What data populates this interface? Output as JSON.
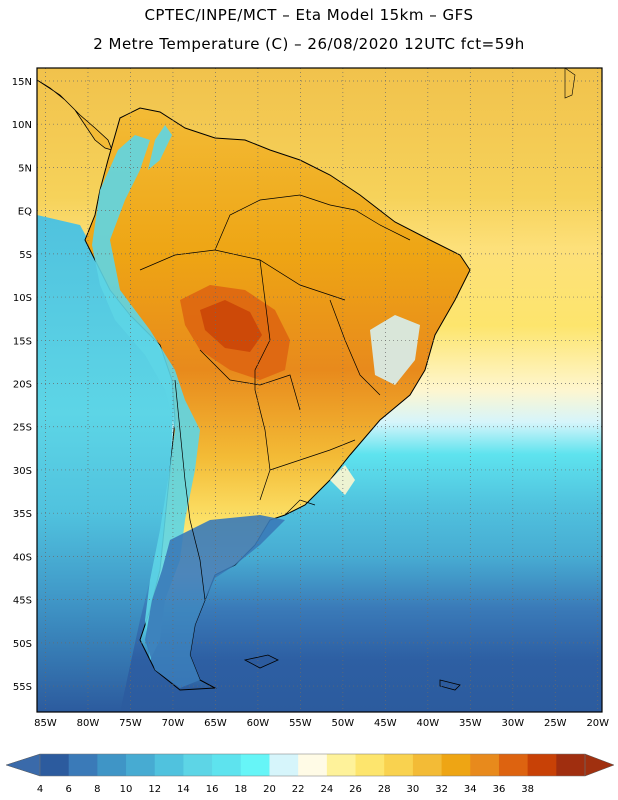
{
  "header": {
    "title_line1": "CPTEC/INPE/MCT  –   Eta Model 15km  –  GFS",
    "title_line2": "2 Metre Temperature (C)  –  26/08/2020 12UTC fct=59h"
  },
  "map": {
    "lat_labels": [
      "15N",
      "10N",
      "5N",
      "EQ",
      "5S",
      "10S",
      "15S",
      "20S",
      "25S",
      "30S",
      "35S",
      "40S",
      "45S",
      "50S",
      "55S"
    ],
    "lon_labels": [
      "85W",
      "80W",
      "75W",
      "70W",
      "65W",
      "60W",
      "55W",
      "50W",
      "45W",
      "40W",
      "35W",
      "30W",
      "25W",
      "20W"
    ],
    "lat_range": [
      -58,
      16.5
    ],
    "lon_range": [
      -86,
      -19.5
    ]
  },
  "colorbar": {
    "ticks": [
      "4",
      "6",
      "8",
      "10",
      "12",
      "14",
      "16",
      "18",
      "20",
      "22",
      "24",
      "26",
      "28",
      "30",
      "32",
      "34",
      "36",
      "38"
    ],
    "colors": [
      "#2c5b9e",
      "#3a7ab8",
      "#3f95c6",
      "#47abd2",
      "#50c2de",
      "#5dd5e6",
      "#5ee3ee",
      "#66f5f7",
      "#d6f5fb",
      "#fffbe6",
      "#fef29a",
      "#fde56d",
      "#f9d24f",
      "#f3bb36",
      "#eea514",
      "#e88a1c",
      "#dd6310",
      "#c84106",
      "#a02e0f"
    ],
    "under_color": "#3a6aaa",
    "over_color": "#a0300f"
  },
  "colors": {
    "ocean_south": "#2d5fa3",
    "ocean_mid": "#47abd2",
    "ocean_north": "#f3c14a",
    "land_warm": "#f0a12a",
    "land_hot": "#dd6a14",
    "land_andes": "#5dd5e6"
  }
}
